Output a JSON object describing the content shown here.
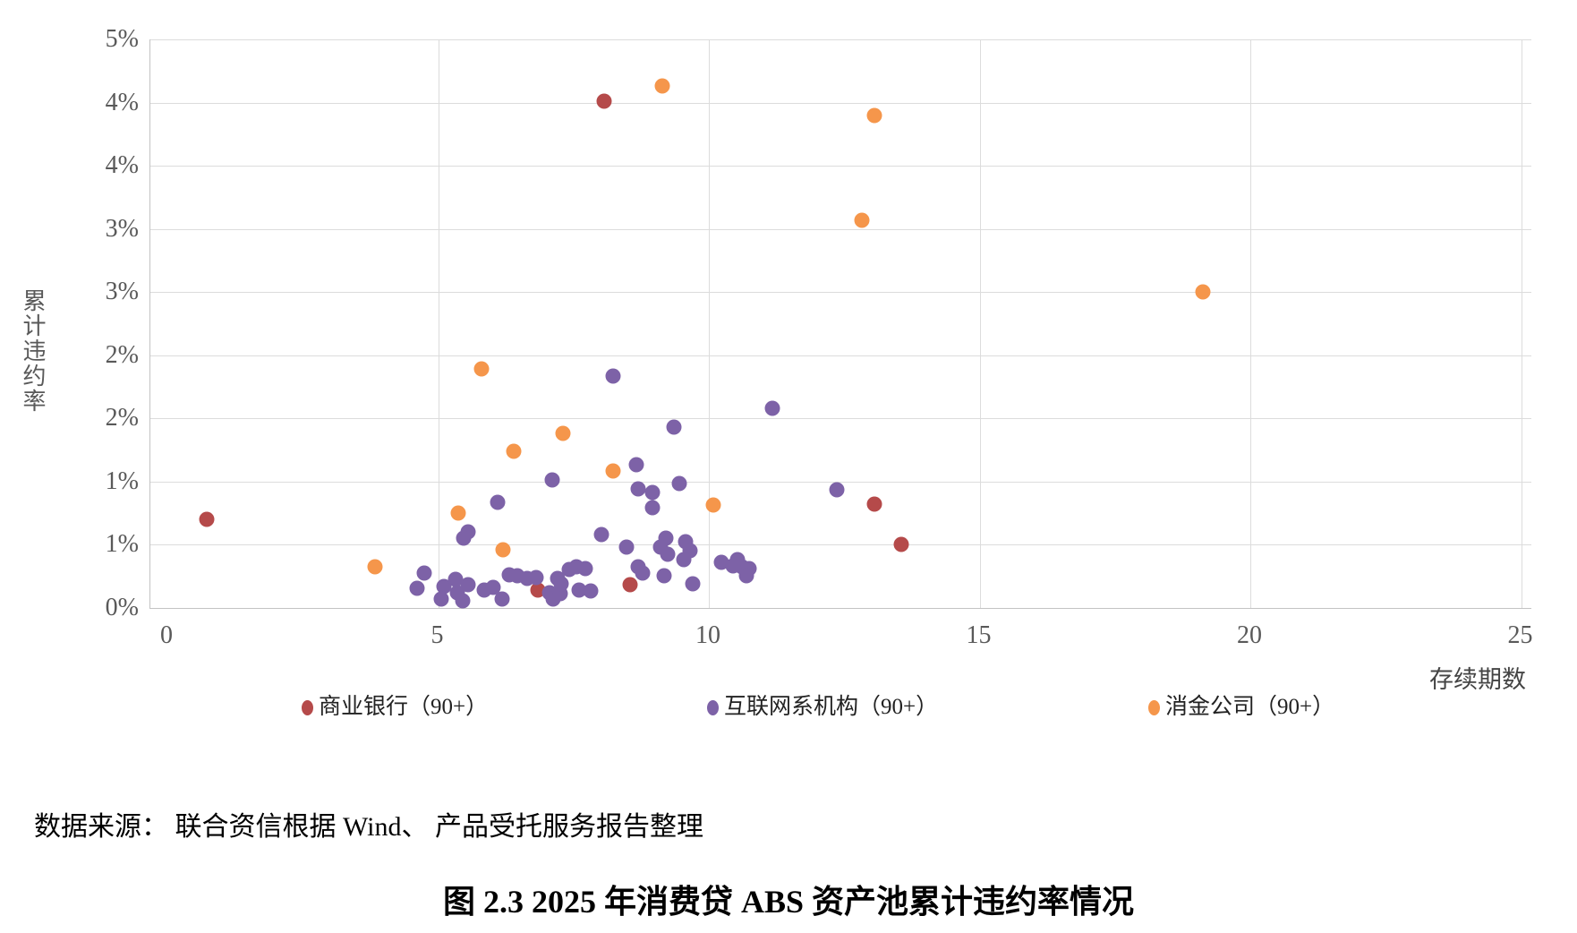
{
  "figure": {
    "caption": "图 2.3   2025 年消费贷 ABS 资产池累计违约率情况",
    "source": "数据来源： 联合资信根据 Wind、 产品受托服务报告整理"
  },
  "chart_data": {
    "type": "scatter",
    "grid": true,
    "legend_position": "bottom",
    "x_axis": {
      "title": "存续期数",
      "min": 0,
      "max": 25,
      "tick_values": [
        0,
        5,
        10,
        15,
        20,
        25
      ],
      "tick_labels": [
        "0",
        "5",
        "10",
        "15",
        "20",
        "25"
      ]
    },
    "y_axis": {
      "title": "累计违约率",
      "unit": "percent",
      "min": 0,
      "max": 4.5,
      "gridline_step": 0.5,
      "ticks_top_to_bottom": [
        {
          "value": 4.5,
          "label": "5%"
        },
        {
          "value": 4.0,
          "label": "4%"
        },
        {
          "value": 3.5,
          "label": "4%"
        },
        {
          "value": 3.0,
          "label": "3%"
        },
        {
          "value": 2.5,
          "label": "3%"
        },
        {
          "value": 2.0,
          "label": "2%"
        },
        {
          "value": 1.5,
          "label": "2%"
        },
        {
          "value": 1.0,
          "label": "1%"
        },
        {
          "value": 0.5,
          "label": "1%"
        },
        {
          "value": 0.0,
          "label": "0%"
        }
      ]
    },
    "series": [
      {
        "name": "商业银行（90+）",
        "color": "#B54A4A",
        "points": [
          [
            0.73,
            0.7
          ],
          [
            8.06,
            4.01
          ],
          [
            13.05,
            0.82
          ],
          [
            13.55,
            0.5
          ],
          [
            8.54,
            0.18
          ],
          [
            6.84,
            0.14
          ]
        ]
      },
      {
        "name": "互联网系机构（90+）",
        "color": "#7D62A7",
        "points": [
          [
            8.23,
            1.83
          ],
          [
            11.17,
            1.58
          ],
          [
            9.36,
            1.43
          ],
          [
            8.66,
            1.13
          ],
          [
            7.11,
            1.01
          ],
          [
            8.69,
            0.94
          ],
          [
            6.1,
            0.83
          ],
          [
            5.56,
            0.6
          ],
          [
            5.47,
            0.55
          ],
          [
            8.01,
            0.58
          ],
          [
            8.48,
            0.48
          ],
          [
            4.75,
            0.27
          ],
          [
            4.61,
            0.15
          ],
          [
            5.11,
            0.17
          ],
          [
            5.33,
            0.22
          ],
          [
            5.35,
            0.12
          ],
          [
            5.46,
            0.05
          ],
          [
            5.05,
            0.07
          ],
          [
            5.55,
            0.18
          ],
          [
            5.85,
            0.14
          ],
          [
            6.01,
            0.16
          ],
          [
            6.18,
            0.07
          ],
          [
            6.32,
            0.26
          ],
          [
            6.46,
            0.25
          ],
          [
            6.65,
            0.23
          ],
          [
            6.81,
            0.24
          ],
          [
            7.06,
            0.12
          ],
          [
            7.12,
            0.07
          ],
          [
            7.26,
            0.11
          ],
          [
            7.2,
            0.23
          ],
          [
            7.28,
            0.19
          ],
          [
            7.42,
            0.3
          ],
          [
            7.56,
            0.32
          ],
          [
            7.72,
            0.31
          ],
          [
            7.61,
            0.14
          ],
          [
            7.81,
            0.13
          ],
          [
            8.96,
            0.91
          ],
          [
            8.96,
            0.79
          ],
          [
            9.45,
            0.98
          ],
          [
            12.36,
            0.93
          ],
          [
            9.21,
            0.55
          ],
          [
            9.1,
            0.48
          ],
          [
            9.24,
            0.42
          ],
          [
            9.57,
            0.52
          ],
          [
            9.65,
            0.45
          ],
          [
            9.54,
            0.38
          ],
          [
            8.69,
            0.32
          ],
          [
            8.77,
            0.27
          ],
          [
            9.18,
            0.25
          ],
          [
            9.7,
            0.19
          ],
          [
            10.23,
            0.36
          ],
          [
            10.53,
            0.38
          ],
          [
            10.61,
            0.32
          ],
          [
            10.75,
            0.31
          ],
          [
            10.45,
            0.33
          ],
          [
            10.7,
            0.25
          ]
        ]
      },
      {
        "name": "消金公司（90+）",
        "color": "#F5964B",
        "points": [
          [
            9.14,
            4.13
          ],
          [
            13.05,
            3.9
          ],
          [
            12.82,
            3.07
          ],
          [
            19.12,
            2.5
          ],
          [
            5.8,
            1.89
          ],
          [
            7.3,
            1.38
          ],
          [
            6.39,
            1.24
          ],
          [
            8.23,
            1.08
          ],
          [
            10.09,
            0.81
          ],
          [
            5.37,
            0.75
          ],
          [
            6.2,
            0.46
          ],
          [
            3.83,
            0.32
          ]
        ]
      }
    ]
  }
}
